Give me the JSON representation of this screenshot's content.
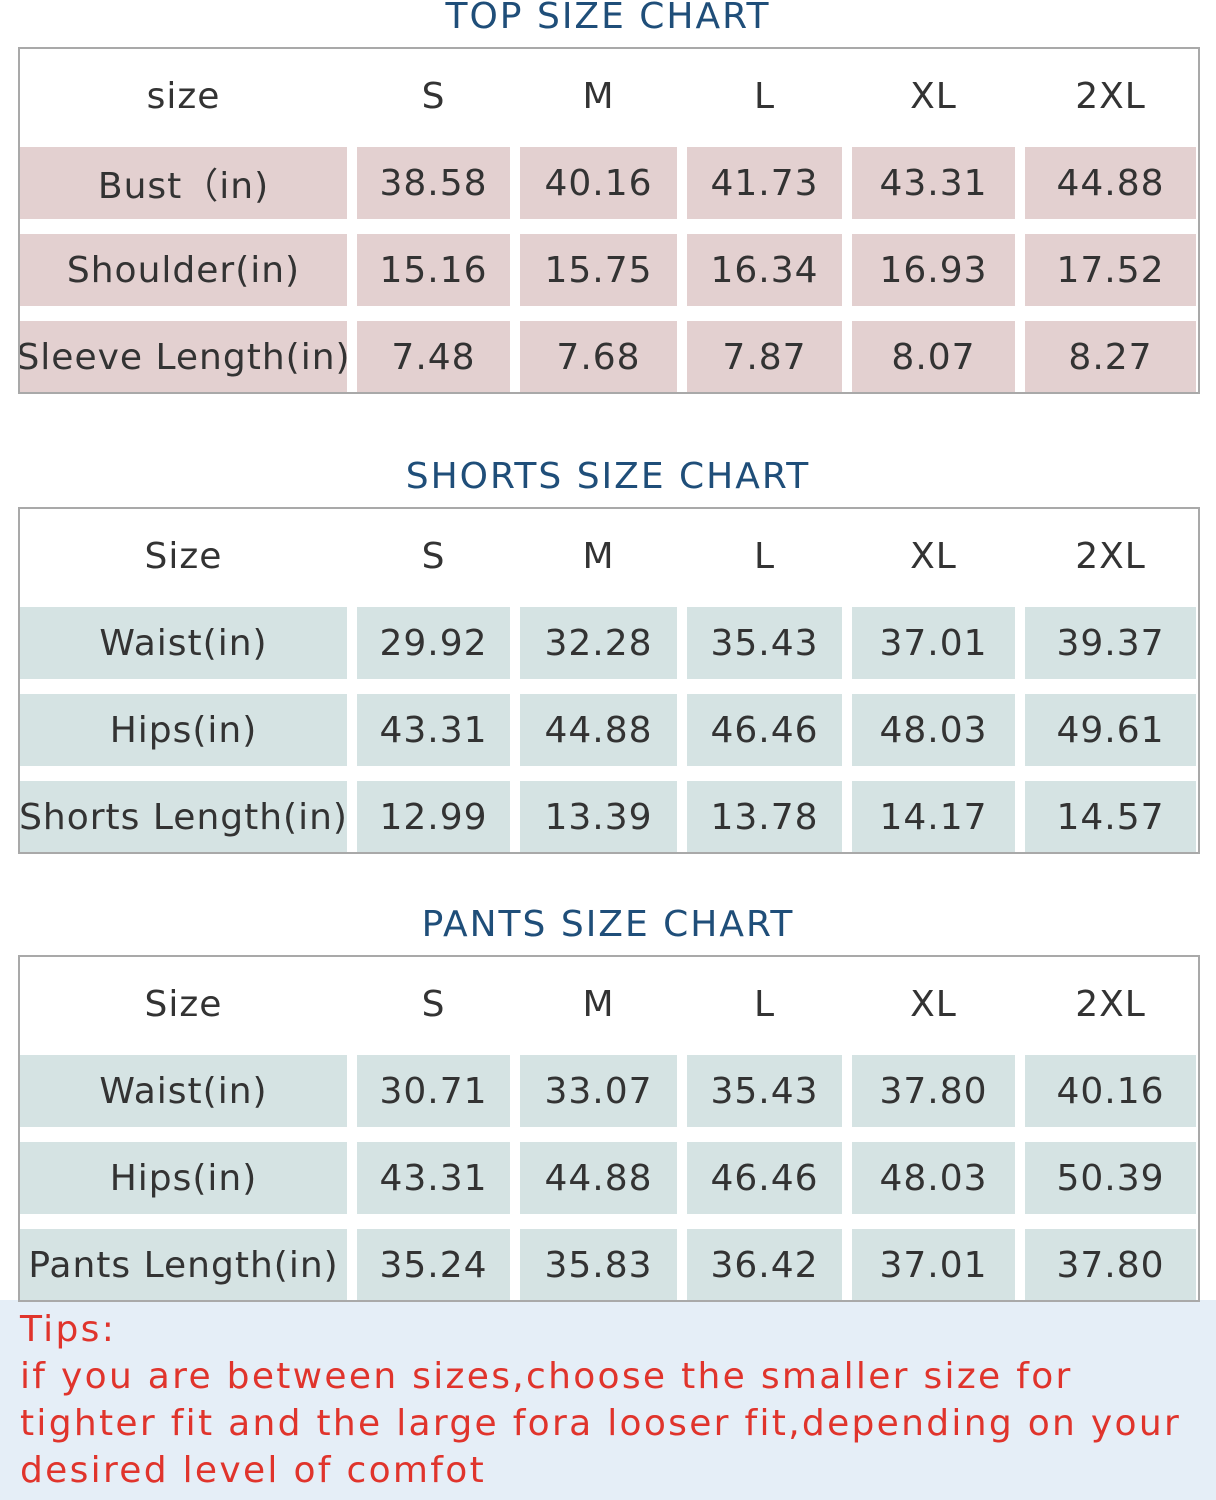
{
  "tables": [
    {
      "title": "TOP SIZE CHART",
      "header": [
        "size",
        "S",
        "M",
        "L",
        "XL",
        "2XL"
      ],
      "rows": [
        [
          "Bust（in)",
          "38.58",
          "40.16",
          "41.73",
          "43.31",
          "44.88"
        ],
        [
          "Shoulder(in)",
          "15.16",
          "15.75",
          "16.34",
          "16.93",
          "17.52"
        ],
        [
          "Sleeve Length(in)",
          "7.48",
          "7.68",
          "7.87",
          "8.07",
          "8.27"
        ]
      ]
    },
    {
      "title": "SHORTS SIZE CHART",
      "header": [
        "Size",
        "S",
        "M",
        "L",
        "XL",
        "2XL"
      ],
      "rows": [
        [
          "Waist(in)",
          "29.92",
          "32.28",
          "35.43",
          "37.01",
          "39.37"
        ],
        [
          "Hips(in)",
          "43.31",
          "44.88",
          "46.46",
          "48.03",
          "49.61"
        ],
        [
          "Shorts Length(in)",
          "12.99",
          "13.39",
          "13.78",
          "14.17",
          "14.57"
        ]
      ]
    },
    {
      "title": "PANTS SIZE CHART",
      "header": [
        "Size",
        "S",
        "M",
        "L",
        "XL",
        "2XL"
      ],
      "rows": [
        [
          "Waist(in)",
          "30.71",
          "33.07",
          "35.43",
          "37.80",
          "40.16"
        ],
        [
          "Hips(in)",
          "43.31",
          "44.88",
          "46.46",
          "48.03",
          "50.39"
        ],
        [
          "Pants Length(in)",
          "35.24",
          "35.83",
          "36.42",
          "37.01",
          "37.80"
        ]
      ]
    }
  ],
  "tips": {
    "title": "Tips:",
    "text": "if you are between sizes,choose the smaller size for tighter fit and the large fora looser fit,depending on your desired level of comfot"
  }
}
